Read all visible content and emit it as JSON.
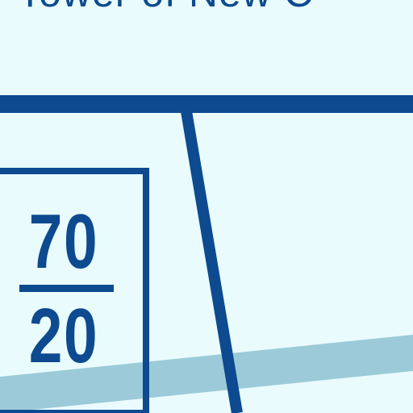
{
  "title": "Tower of New C",
  "fraction": {
    "numerator": "70",
    "denominator": "20"
  },
  "colors": {
    "background": "#e9fbfd",
    "line": "#0d4a8f",
    "water": "#9ccad8"
  }
}
